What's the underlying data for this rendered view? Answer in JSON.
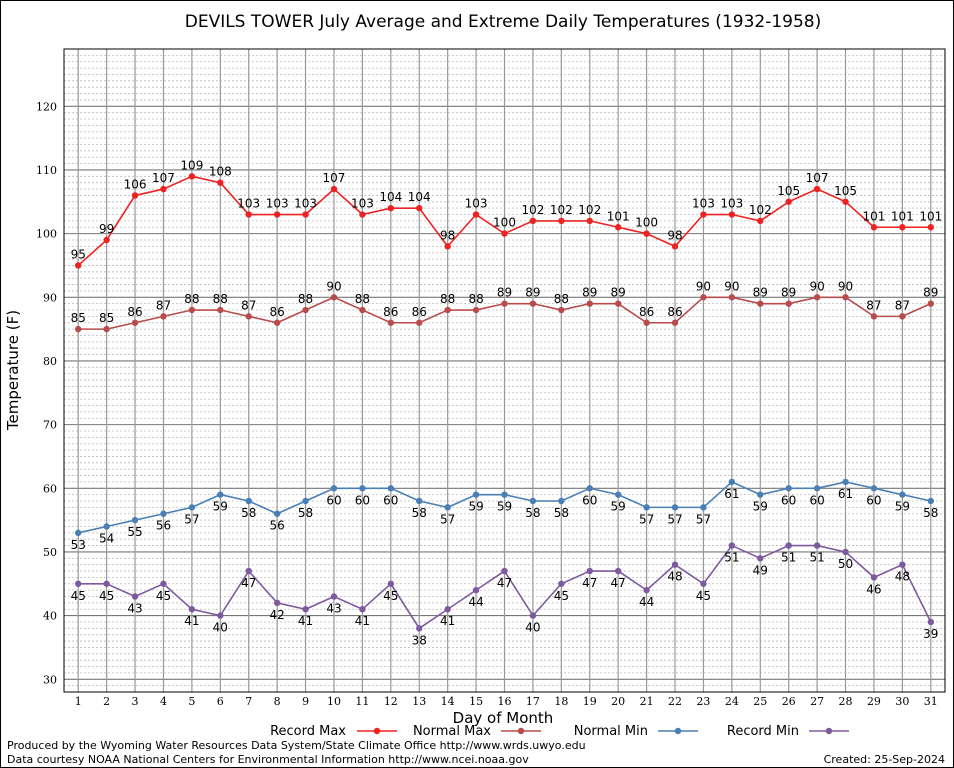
{
  "chart_data": {
    "type": "line",
    "title": "DEVILS TOWER July Average and Extreme Daily Temperatures (1932-1958)",
    "xlabel": "Day of Month",
    "ylabel": "Temperature (F)",
    "ylim": [
      28,
      129
    ],
    "y_ticks": [
      30,
      40,
      50,
      60,
      70,
      80,
      90,
      100,
      110,
      120
    ],
    "x": [
      1,
      2,
      3,
      4,
      5,
      6,
      7,
      8,
      9,
      10,
      11,
      12,
      13,
      14,
      15,
      16,
      17,
      18,
      19,
      20,
      21,
      22,
      23,
      24,
      25,
      26,
      27,
      28,
      29,
      30,
      31
    ],
    "grid": true,
    "legend_position": "bottom",
    "series": [
      {
        "name": "Record Max",
        "color": "#ee2222",
        "label_side": "above",
        "values": [
          95,
          99,
          106,
          107,
          109,
          108,
          103,
          103,
          103,
          107,
          103,
          104,
          104,
          98,
          103,
          100,
          102,
          102,
          102,
          101,
          100,
          98,
          103,
          103,
          102,
          105,
          107,
          105,
          101,
          101,
          101
        ]
      },
      {
        "name": "Normal Max",
        "color": "#b84c4c",
        "label_side": "above",
        "values": [
          85,
          85,
          86,
          87,
          88,
          88,
          87,
          86,
          88,
          90,
          88,
          86,
          86,
          88,
          88,
          89,
          89,
          88,
          89,
          89,
          86,
          86,
          90,
          90,
          89,
          89,
          90,
          90,
          87,
          87,
          89
        ]
      },
      {
        "name": "Normal Min",
        "color": "#4a7fb5",
        "label_side": "below",
        "values": [
          53,
          54,
          55,
          56,
          57,
          59,
          58,
          56,
          58,
          60,
          60,
          60,
          58,
          57,
          59,
          59,
          58,
          58,
          60,
          59,
          57,
          57,
          57,
          61,
          59,
          60,
          60,
          61,
          60,
          59,
          58
        ]
      },
      {
        "name": "Record Min",
        "color": "#7d5a9e",
        "label_side": "below",
        "values": [
          45,
          45,
          43,
          45,
          41,
          40,
          47,
          42,
          41,
          43,
          41,
          45,
          38,
          41,
          44,
          47,
          40,
          45,
          47,
          47,
          44,
          48,
          45,
          51,
          49,
          51,
          51,
          50,
          46,
          48,
          39
        ]
      }
    ]
  },
  "footer": {
    "produced_by": "Produced by the Wyoming Water Resources Data System/State Climate Office http://www.wrds.uwyo.edu",
    "courtesy": "Data courtesy NOAA National Centers for Environmental Information http://www.ncei.noaa.gov",
    "created": "Created: 25-Sep-2024"
  }
}
